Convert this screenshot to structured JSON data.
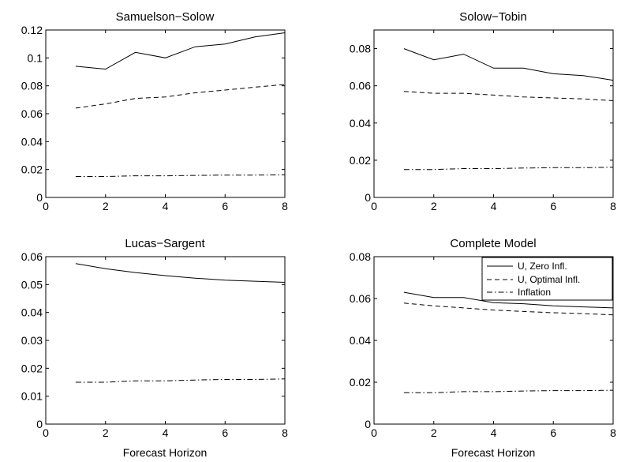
{
  "legend_labels": [
    "U, Zero Infl.",
    "U, Optimal Infl.",
    "Inflation"
  ],
  "chart_data": [
    {
      "type": "line",
      "title": "Samuelson−Solow",
      "xlabel": "",
      "ylabel": "",
      "xlim": [
        0,
        8
      ],
      "ylim": [
        0,
        0.12
      ],
      "xticks": [
        0,
        2,
        4,
        6,
        8
      ],
      "yticks": [
        0,
        0.02,
        0.04,
        0.06,
        0.08,
        0.1,
        0.12
      ],
      "ytick_labels": [
        "0",
        "0.02",
        "0.04",
        "0.06",
        "0.08",
        "0.1",
        "0.12"
      ],
      "grid": false,
      "x": [
        1,
        2,
        3,
        4,
        5,
        6,
        7,
        8
      ],
      "series": [
        {
          "style": "solid",
          "values": [
            0.094,
            0.092,
            0.104,
            0.1,
            0.108,
            0.11,
            0.115,
            0.118
          ]
        },
        {
          "style": "dashed",
          "values": [
            0.064,
            0.067,
            0.071,
            0.072,
            0.075,
            0.077,
            0.079,
            0.081
          ]
        },
        {
          "style": "dashdot",
          "values": [
            0.015,
            0.015,
            0.0155,
            0.0155,
            0.0158,
            0.016,
            0.016,
            0.0162
          ]
        }
      ]
    },
    {
      "type": "line",
      "title": "Solow−Tobin",
      "xlabel": "",
      "ylabel": "",
      "xlim": [
        0,
        8
      ],
      "ylim": [
        0,
        0.09
      ],
      "xticks": [
        0,
        2,
        4,
        6,
        8
      ],
      "yticks": [
        0,
        0.02,
        0.04,
        0.06,
        0.08
      ],
      "ytick_labels": [
        "0",
        "0.02",
        "0.04",
        "0.06",
        "0.08"
      ],
      "grid": false,
      "x": [
        1,
        2,
        3,
        4,
        5,
        6,
        7,
        8
      ],
      "series": [
        {
          "style": "solid",
          "values": [
            0.08,
            0.074,
            0.077,
            0.0695,
            0.0695,
            0.0665,
            0.0655,
            0.063
          ]
        },
        {
          "style": "dashed",
          "values": [
            0.057,
            0.056,
            0.056,
            0.055,
            0.054,
            0.0535,
            0.053,
            0.052
          ]
        },
        {
          "style": "dashdot",
          "values": [
            0.015,
            0.015,
            0.0155,
            0.0155,
            0.0158,
            0.016,
            0.016,
            0.0162
          ]
        }
      ]
    },
    {
      "type": "line",
      "title": "Lucas−Sargent",
      "xlabel": "Forecast Horizon",
      "ylabel": "",
      "xlim": [
        0,
        8
      ],
      "ylim": [
        0,
        0.06
      ],
      "xticks": [
        0,
        2,
        4,
        6,
        8
      ],
      "yticks": [
        0,
        0.01,
        0.02,
        0.03,
        0.04,
        0.05,
        0.06
      ],
      "ytick_labels": [
        "0",
        "0.01",
        "0.02",
        "0.03",
        "0.04",
        "0.05",
        "0.06"
      ],
      "grid": false,
      "x": [
        1,
        2,
        3,
        4,
        5,
        6,
        7,
        8
      ],
      "series": [
        {
          "style": "solid",
          "values": [
            0.0575,
            0.0557,
            0.0543,
            0.0532,
            0.0523,
            0.0516,
            0.0512,
            0.0508
          ]
        },
        {
          "style": "dashdot",
          "values": [
            0.015,
            0.015,
            0.0155,
            0.0155,
            0.0158,
            0.016,
            0.016,
            0.0162
          ]
        }
      ]
    },
    {
      "type": "line",
      "title": "Complete Model",
      "xlabel": "Forecast Horizon",
      "ylabel": "",
      "xlim": [
        0,
        8
      ],
      "ylim": [
        0,
        0.08
      ],
      "xticks": [
        0,
        2,
        4,
        6,
        8
      ],
      "yticks": [
        0,
        0.02,
        0.04,
        0.06,
        0.08
      ],
      "ytick_labels": [
        "0",
        "0.02",
        "0.04",
        "0.06",
        "0.08"
      ],
      "grid": false,
      "legend_position": "top-right",
      "x": [
        1,
        2,
        3,
        4,
        5,
        6,
        7,
        8
      ],
      "series": [
        {
          "name": "U, Zero Infl.",
          "style": "solid",
          "values": [
            0.063,
            0.0605,
            0.0605,
            0.058,
            0.0575,
            0.0565,
            0.056,
            0.0555
          ]
        },
        {
          "name": "U, Optimal Infl.",
          "style": "dashed",
          "values": [
            0.0578,
            0.0565,
            0.0555,
            0.0545,
            0.0538,
            0.0532,
            0.0528,
            0.0522
          ]
        },
        {
          "name": "Inflation",
          "style": "dashdot",
          "values": [
            0.015,
            0.015,
            0.0155,
            0.0155,
            0.0158,
            0.016,
            0.016,
            0.0162
          ]
        }
      ]
    }
  ]
}
